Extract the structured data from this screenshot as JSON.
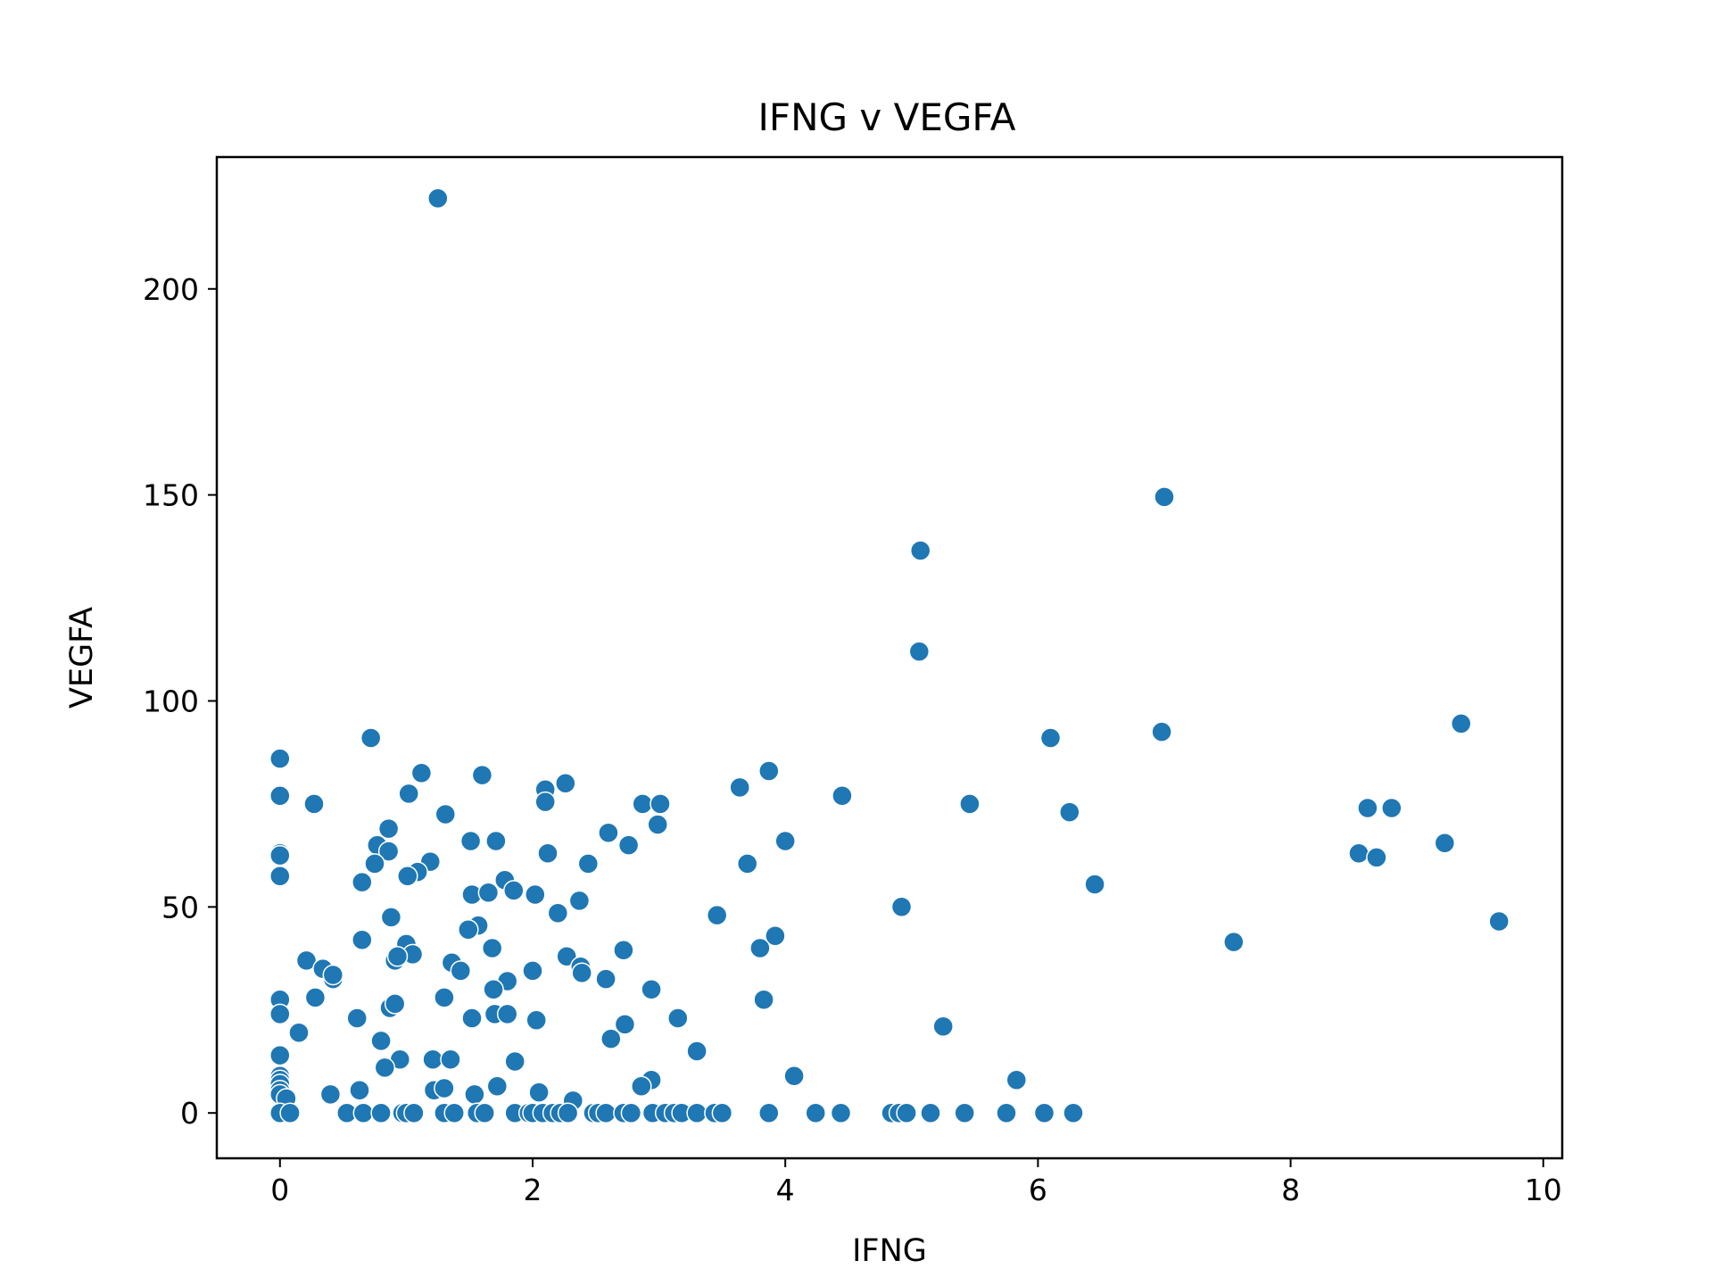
{
  "chart_data": {
    "type": "scatter",
    "title": "IFNG v VEGFA",
    "xlabel": "IFNG",
    "ylabel": "VEGFA",
    "xlim": [
      -0.5,
      10.15
    ],
    "ylim": [
      -11,
      232
    ],
    "xticks": [
      0,
      2,
      4,
      6,
      8,
      10
    ],
    "yticks": [
      0,
      50,
      100,
      150,
      200
    ],
    "grid": false,
    "legend": "none",
    "marker_color": "#1f77b4",
    "points": [
      [
        1.25,
        222
      ],
      [
        7.0,
        149.5
      ],
      [
        5.07,
        136.5
      ],
      [
        5.06,
        112
      ],
      [
        0.72,
        91
      ],
      [
        6.1,
        91
      ],
      [
        6.98,
        92.5
      ],
      [
        9.35,
        94.5
      ],
      [
        0.0,
        86
      ],
      [
        3.87,
        83
      ],
      [
        1.12,
        82.5
      ],
      [
        1.6,
        82
      ],
      [
        2.26,
        80
      ],
      [
        2.1,
        78.5
      ],
      [
        3.64,
        79
      ],
      [
        0.0,
        77
      ],
      [
        1.02,
        77.5
      ],
      [
        4.45,
        77
      ],
      [
        0.27,
        75
      ],
      [
        2.1,
        75.5
      ],
      [
        2.87,
        75
      ],
      [
        3.01,
        75
      ],
      [
        5.46,
        75
      ],
      [
        8.61,
        74
      ],
      [
        8.8,
        74
      ],
      [
        1.31,
        72.5
      ],
      [
        6.25,
        73
      ],
      [
        2.99,
        70
      ],
      [
        0.86,
        69
      ],
      [
        2.6,
        68
      ],
      [
        1.51,
        66
      ],
      [
        1.71,
        66
      ],
      [
        0.77,
        65
      ],
      [
        4.0,
        66
      ],
      [
        2.76,
        65
      ],
      [
        9.22,
        65.5
      ],
      [
        0.0,
        63
      ],
      [
        0.0,
        62.5
      ],
      [
        0.86,
        63.5
      ],
      [
        2.12,
        63
      ],
      [
        8.54,
        63
      ],
      [
        8.68,
        62
      ],
      [
        0.75,
        60.5
      ],
      [
        1.19,
        61
      ],
      [
        2.44,
        60.5
      ],
      [
        3.7,
        60.5
      ],
      [
        1.09,
        58.5
      ],
      [
        1.01,
        57.5
      ],
      [
        0.0,
        57.5
      ],
      [
        1.78,
        56.5
      ],
      [
        0.65,
        56
      ],
      [
        6.45,
        55.5
      ],
      [
        1.52,
        53
      ],
      [
        1.65,
        53.5
      ],
      [
        1.85,
        54
      ],
      [
        2.02,
        53
      ],
      [
        2.37,
        51.5
      ],
      [
        4.92,
        50
      ],
      [
        2.2,
        48.5
      ],
      [
        0.88,
        47.5
      ],
      [
        3.46,
        48
      ],
      [
        9.65,
        46.5
      ],
      [
        1.57,
        45.5
      ],
      [
        1.49,
        44.5
      ],
      [
        3.92,
        43
      ],
      [
        0.65,
        42
      ],
      [
        7.55,
        41.5
      ],
      [
        1.0,
        41
      ],
      [
        1.68,
        40
      ],
      [
        3.8,
        40
      ],
      [
        2.72,
        39.5
      ],
      [
        1.05,
        38.5
      ],
      [
        0.91,
        37
      ],
      [
        0.93,
        38
      ],
      [
        2.27,
        38
      ],
      [
        0.21,
        37
      ],
      [
        1.36,
        36.5
      ],
      [
        2.38,
        35.5
      ],
      [
        0.34,
        35
      ],
      [
        1.43,
        34.5
      ],
      [
        0.42,
        32.5
      ],
      [
        0.42,
        33.5
      ],
      [
        2.0,
        34.5
      ],
      [
        2.39,
        34
      ],
      [
        1.8,
        32
      ],
      [
        2.58,
        32.5
      ],
      [
        1.69,
        30
      ],
      [
        2.94,
        30
      ],
      [
        0.0,
        27.5
      ],
      [
        0.28,
        28
      ],
      [
        1.3,
        28
      ],
      [
        0.87,
        25.5
      ],
      [
        0.91,
        26.5
      ],
      [
        3.83,
        27.5
      ],
      [
        0.0,
        24
      ],
      [
        0.61,
        23
      ],
      [
        1.52,
        23
      ],
      [
        1.7,
        24
      ],
      [
        1.8,
        24
      ],
      [
        2.03,
        22.5
      ],
      [
        3.15,
        23
      ],
      [
        2.73,
        21.5
      ],
      [
        5.25,
        21
      ],
      [
        0.15,
        19.5
      ],
      [
        2.62,
        18
      ],
      [
        0.8,
        17.5
      ],
      [
        3.3,
        15
      ],
      [
        0.0,
        14
      ],
      [
        0.95,
        13
      ],
      [
        1.21,
        13
      ],
      [
        1.35,
        13
      ],
      [
        1.86,
        12.5
      ],
      [
        0.83,
        11
      ],
      [
        0.0,
        9
      ],
      [
        4.07,
        9
      ],
      [
        0.0,
        8
      ],
      [
        2.94,
        8
      ],
      [
        5.83,
        8
      ],
      [
        0.0,
        7
      ],
      [
        1.72,
        6.5
      ],
      [
        2.86,
        6.5
      ],
      [
        0.0,
        5.5
      ],
      [
        0.63,
        5.5
      ],
      [
        1.22,
        5.5
      ],
      [
        1.3,
        6
      ],
      [
        0.0,
        4.5
      ],
      [
        0.05,
        3.5
      ],
      [
        0.4,
        4.5
      ],
      [
        1.54,
        4.5
      ],
      [
        2.05,
        5
      ],
      [
        2.32,
        3
      ],
      [
        0.0,
        0
      ],
      [
        0.08,
        0
      ],
      [
        0.53,
        0
      ],
      [
        0.66,
        0
      ],
      [
        0.8,
        0
      ],
      [
        0.97,
        0
      ],
      [
        1.0,
        0
      ],
      [
        1.06,
        0
      ],
      [
        1.3,
        0
      ],
      [
        1.38,
        0
      ],
      [
        1.56,
        0
      ],
      [
        1.62,
        0
      ],
      [
        1.86,
        0
      ],
      [
        1.97,
        0
      ],
      [
        2.0,
        0
      ],
      [
        2.08,
        0
      ],
      [
        2.16,
        0
      ],
      [
        2.22,
        0
      ],
      [
        2.28,
        0
      ],
      [
        2.48,
        0
      ],
      [
        2.52,
        0
      ],
      [
        2.58,
        0
      ],
      [
        2.72,
        0
      ],
      [
        2.78,
        0
      ],
      [
        2.95,
        0
      ],
      [
        3.05,
        0
      ],
      [
        3.12,
        0
      ],
      [
        3.18,
        0
      ],
      [
        3.3,
        0
      ],
      [
        3.44,
        0
      ],
      [
        3.5,
        0
      ],
      [
        3.87,
        0
      ],
      [
        4.24,
        0
      ],
      [
        4.44,
        0
      ],
      [
        4.84,
        0
      ],
      [
        4.9,
        0
      ],
      [
        4.96,
        0
      ],
      [
        5.15,
        0
      ],
      [
        5.42,
        0
      ],
      [
        5.75,
        0
      ],
      [
        6.05,
        0
      ],
      [
        6.28,
        0
      ]
    ]
  }
}
